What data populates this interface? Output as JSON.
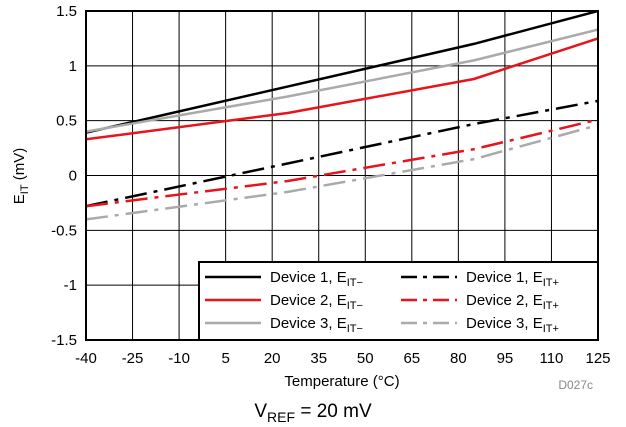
{
  "chart_data": {
    "type": "line",
    "title": "",
    "xlabel": "Temperature (°C)",
    "ylabel": {
      "main": "E",
      "sub": "IT",
      "rest": " (mV)"
    },
    "xlim": [
      -40,
      125
    ],
    "ylim": [
      -1.5,
      1.5
    ],
    "x_ticks": [
      -40,
      -25,
      -10,
      5,
      20,
      35,
      50,
      65,
      80,
      95,
      110,
      125
    ],
    "y_ticks": [
      {
        "value": 1.5,
        "label": "1.5"
      },
      {
        "value": 1,
        "label": "1"
      },
      {
        "value": 0.5,
        "label": "0.5"
      },
      {
        "value": 0,
        "label": "0"
      },
      {
        "value": -0.5,
        "label": "-0.5"
      },
      {
        "value": -1,
        "label": "-1"
      },
      {
        "value": -1.5,
        "label": "-1.5"
      }
    ],
    "grid": true,
    "legend_position": "bottom-right",
    "series": [
      {
        "name": "Device 1, E",
        "sub": "IT−",
        "color": "#000000",
        "dash": "solid",
        "x": [
          -40,
          85,
          125
        ],
        "y": [
          0.39,
          1.2,
          1.5
        ]
      },
      {
        "name": "Device 1, E",
        "sub": "IT+",
        "color": "#000000",
        "dash": "dashdot",
        "x": [
          -40,
          85,
          125
        ],
        "y": [
          -0.28,
          0.47,
          0.68
        ]
      },
      {
        "name": "Device 2, E",
        "sub": "IT−",
        "color": "#e8141b",
        "dash": "solid",
        "x": [
          -40,
          25,
          85,
          125
        ],
        "y": [
          0.33,
          0.57,
          0.88,
          1.25
        ]
      },
      {
        "name": "Device 2, E",
        "sub": "IT+",
        "color": "#e8141b",
        "dash": "dashdot",
        "x": [
          -40,
          25,
          85,
          125
        ],
        "y": [
          -0.28,
          -0.05,
          0.24,
          0.51
        ]
      },
      {
        "name": "Device 3, E",
        "sub": "IT−",
        "color": "#aaaaaa",
        "dash": "solid",
        "x": [
          -40,
          25,
          85,
          125
        ],
        "y": [
          0.4,
          0.72,
          1.05,
          1.33
        ]
      },
      {
        "name": "Device 3, E",
        "sub": "IT+",
        "color": "#aaaaaa",
        "dash": "dashdot",
        "x": [
          -40,
          25,
          85,
          125
        ],
        "y": [
          -0.4,
          -0.15,
          0.15,
          0.46
        ]
      }
    ],
    "figure_code": "D027c",
    "condition": {
      "main": "V",
      "sub": "REF",
      "rest": " = 20 mV"
    }
  }
}
